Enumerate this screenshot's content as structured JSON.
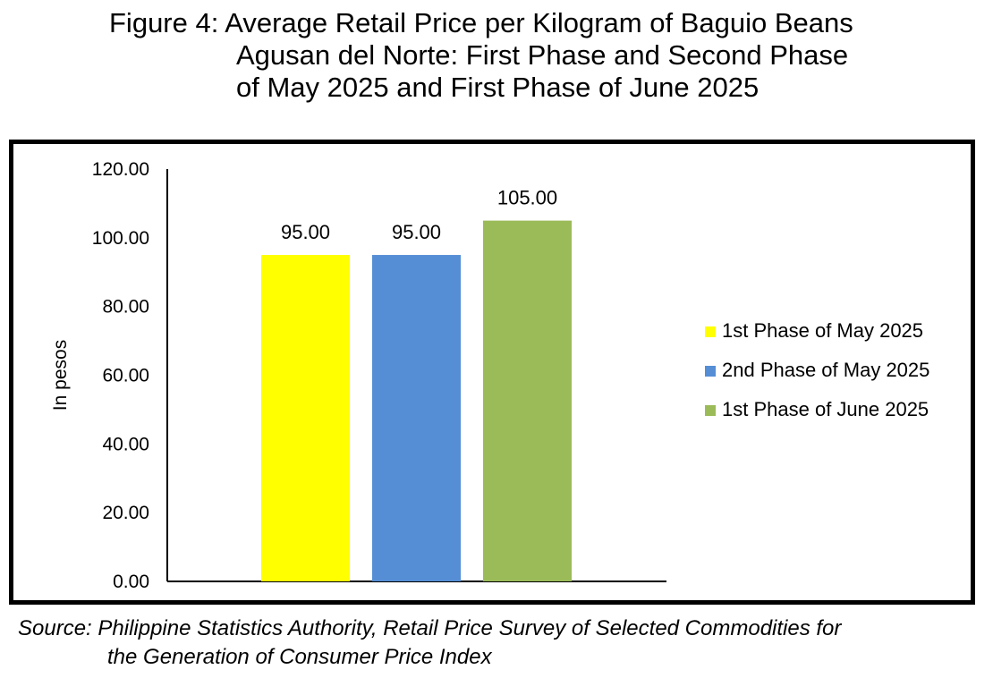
{
  "title_lines": [
    "Figure 4: Average Retail Price per Kilogram of Baguio Beans",
    "Agusan del Norte: First Phase and Second Phase",
    "of May 2025 and First Phase of June 2025"
  ],
  "source_lines": [
    "Source: Philippine Statistics Authority, Retail Price Survey of Selected Commodities for",
    "the Generation of Consumer Price Index"
  ],
  "chart_data": {
    "type": "bar",
    "title": "Figure 4: Average Retail Price per Kilogram of Baguio Beans Agusan del Norte: First Phase and Second Phase of May 2025 and First Phase of June 2025",
    "xlabel": "",
    "ylabel": "In pesos",
    "ylim": [
      0,
      120
    ],
    "yticks": [
      "0.00",
      "20.00",
      "40.00",
      "60.00",
      "80.00",
      "100.00",
      "120.00"
    ],
    "grid": false,
    "legend_position": "right",
    "series": [
      {
        "name": "1st Phase of May 2025",
        "value": 95,
        "label": "95.00",
        "color": "#FFFF00"
      },
      {
        "name": "2nd Phase of May 2025",
        "value": 95,
        "label": "95.00",
        "color": "#558ED5"
      },
      {
        "name": "1st Phase of June 2025",
        "value": 105,
        "label": "105.00",
        "color": "#9BBB59"
      }
    ]
  }
}
